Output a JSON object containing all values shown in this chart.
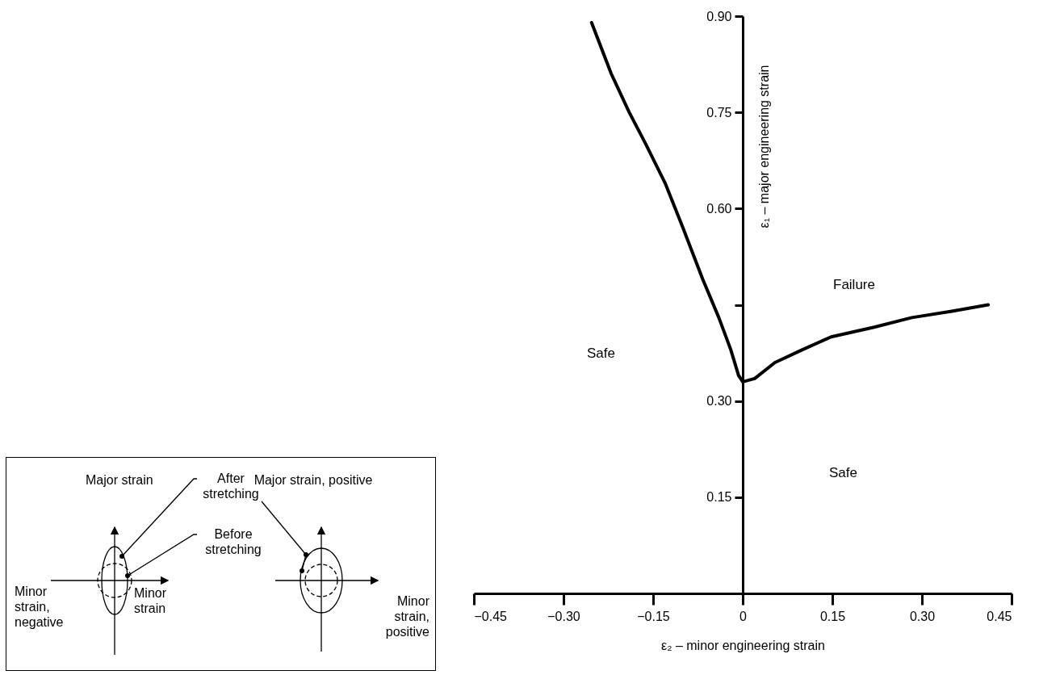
{
  "chart_data": {
    "type": "line",
    "xlabel": "ε₂ – minor engineering strain",
    "ylabel": "ε₁ – major engineering strain",
    "xlim": [
      -0.45,
      0.45
    ],
    "ylim": [
      0,
      0.9
    ],
    "xticks": [
      {
        "value": -0.45,
        "label": "−0.45"
      },
      {
        "value": -0.3,
        "label": "−0.30"
      },
      {
        "value": -0.15,
        "label": "−0.15"
      },
      0,
      0.15,
      {
        "value": 0.3,
        "label": "0.30"
      },
      0.45
    ],
    "yticks": [
      0.15,
      {
        "value": 0.3,
        "label": "0.30"
      },
      {
        "value": 0.45,
        "label": null
      },
      {
        "value": 0.6,
        "label": "0.60"
      },
      0.75,
      {
        "value": 0.9,
        "label": "0.90"
      }
    ],
    "series": [
      {
        "color": "#000000",
        "x": [
          -0.253,
          -0.22,
          -0.19,
          -0.162,
          -0.13,
          -0.1,
          -0.067,
          -0.04,
          -0.02,
          -0.007,
          0,
          0.02,
          0.054,
          0.1,
          0.148,
          0.22,
          0.283,
          0.35,
          0.411
        ],
        "values": [
          0.89,
          0.81,
          0.75,
          0.7,
          0.64,
          0.57,
          0.49,
          0.43,
          0.38,
          0.34,
          0.33,
          0.335,
          0.36,
          0.38,
          0.4,
          0.415,
          0.43,
          0.44,
          0.45
        ]
      }
    ],
    "line_style": "solid",
    "annotations": [
      "Safe",
      "Failure",
      "Safe",
      "Major strain",
      "After stretching",
      "Before stretching",
      "Major strain, positive",
      "Minor strain, negative",
      "Minor strain",
      "Minor strain, positive"
    ]
  }
}
